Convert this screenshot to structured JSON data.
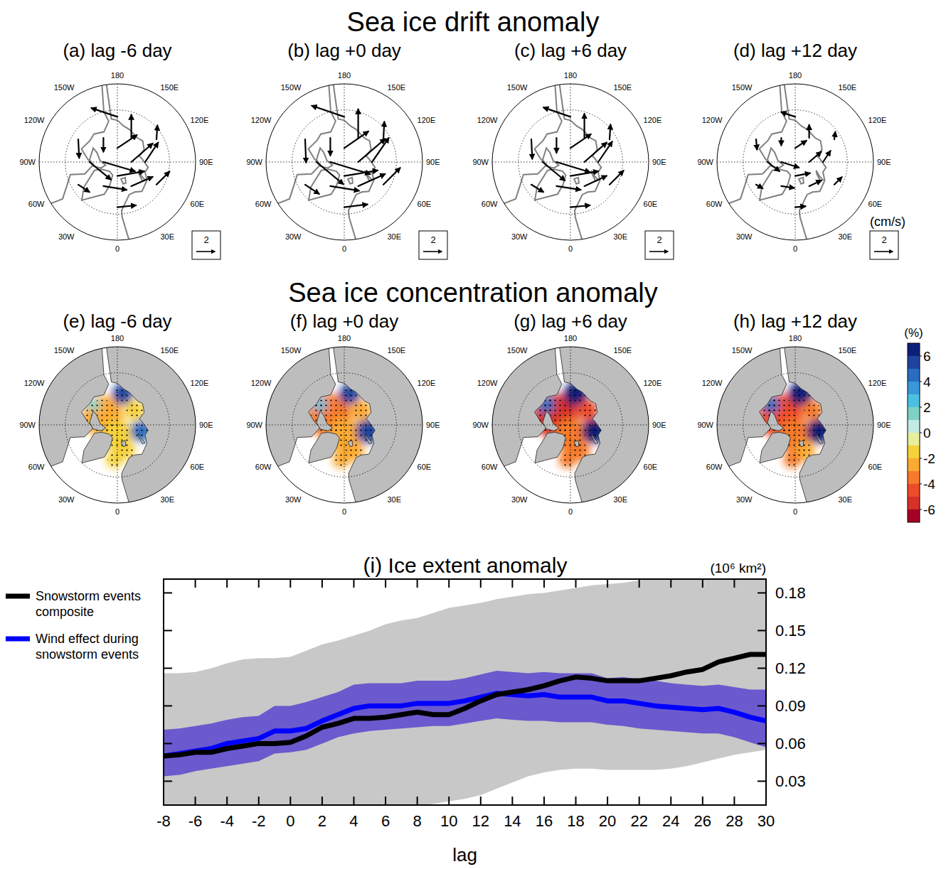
{
  "chart_data": [
    {
      "type": "vector_map",
      "title": "Sea ice drift anomaly",
      "unit": "(cm/s)",
      "reference_vector": 2,
      "lon_ticks": [
        180,
        {
          "value": 150,
          "label": "150E"
        },
        {
          "value": 120,
          "label": "120E"
        },
        {
          "value": 90,
          "label": "90E"
        },
        {
          "value": 60,
          "label": "60E"
        },
        {
          "value": 30,
          "label": "30E"
        },
        0,
        {
          "value": -30,
          "label": "30W"
        },
        {
          "value": -60,
          "label": "60W"
        },
        {
          "value": -90,
          "label": "90W"
        },
        {
          "value": -120,
          "label": "120W"
        },
        {
          "value": -150,
          "label": "150W"
        }
      ],
      "lat": [
        82,
        82,
        82,
        82,
        74,
        74,
        74,
        74,
        74,
        74,
        64,
        64,
        64,
        64,
        64,
        64
      ],
      "lon": [
        0,
        90,
        180,
        -90,
        -150,
        -90,
        -30,
        30,
        90,
        150,
        -120,
        -60,
        0,
        60,
        120,
        180
      ],
      "panels": [
        {
          "title": "(a) lag -6 day",
          "u": [
            2.9,
            2.3,
            2.1,
            3.4,
            0,
            2.3,
            2.5,
            2.3,
            1.4,
            0,
            0.1,
            1.2,
            2,
            1.4,
            0.1,
            -2.8
          ],
          "v": [
            0.5,
            2.0,
            1.4,
            -1.0,
            -1.5,
            -1.9,
            -0.4,
            1.0,
            2.1,
            2.5,
            -2,
            -0.8,
            0.2,
            1.4,
            1.5,
            0.95
          ]
        },
        {
          "title": "(b) lag +0 day",
          "u": [
            3.6,
            2.9,
            2.6,
            4.3,
            0,
            2.9,
            3.1,
            2.9,
            1.8,
            0,
            0.1,
            1.5,
            2.5,
            1.8,
            0.1,
            -3.5
          ],
          "v": [
            0.6,
            2.5,
            1.8,
            -1.3,
            -1.9,
            -2.4,
            -0.5,
            1.3,
            2.6,
            3.1,
            -2.5,
            -1,
            0.3,
            1.8,
            1.9,
            1.2
          ]
        },
        {
          "title": "(c) lag +6 day",
          "u": [
            3.0,
            2.4,
            2.2,
            3.6,
            0,
            2.4,
            2.6,
            2.4,
            1.5,
            0,
            0.1,
            1.3,
            2.1,
            1.5,
            0.1,
            -2.9
          ],
          "v": [
            0.5,
            2.1,
            1.5,
            -1.1,
            -1.6,
            -2.0,
            -0.4,
            1.1,
            2.2,
            2.6,
            -2.1,
            -0.8,
            0.2,
            1.5,
            1.6,
            1.0
          ]
        },
        {
          "title": "(d) lag +12 day",
          "u": [
            1.6,
            1.3,
            1.2,
            1.9,
            0,
            1.3,
            1.4,
            1.3,
            0.8,
            0,
            0.1,
            0.7,
            1.1,
            0.8,
            0.1,
            -1.5
          ],
          "v": [
            0.3,
            1.1,
            0.8,
            -0.6,
            -0.8,
            -1.0,
            -0.2,
            0.6,
            1.2,
            1.4,
            -1.1,
            -0.4,
            0.1,
            0.8,
            0.8,
            0.5
          ]
        }
      ]
    },
    {
      "type": "contour_map",
      "title": "Sea ice concentration anomaly",
      "lon_ticks": [
        180,
        {
          "value": 150,
          "label": "150E"
        },
        {
          "value": 120,
          "label": "120E"
        },
        {
          "value": 90,
          "label": "90E"
        },
        {
          "value": 60,
          "label": "60E"
        },
        {
          "value": 30,
          "label": "30E"
        },
        0,
        {
          "value": -30,
          "label": "30W"
        },
        {
          "value": -60,
          "label": "60W"
        },
        {
          "value": -90,
          "label": "90W"
        },
        {
          "value": -120,
          "label": "120W"
        },
        {
          "value": -150,
          "label": "150W"
        }
      ],
      "colorbar": {
        "label": "(%)",
        "range": [
          -7,
          7
        ],
        "ticks": [
          6,
          4,
          2,
          0,
          -2,
          -4,
          -6
        ],
        "colors": [
          "#a50026",
          "#d73027",
          "#ee4b2b",
          "#f67a2c",
          "#fbaa32",
          "#f5d23a",
          "#e8ee9a",
          "#c4ebe3",
          "#7fd1c3",
          "#4cc0e0",
          "#3a98d8",
          "#2a6cc0",
          "#1f44a0",
          "#0c1f78"
        ]
      },
      "panels": [
        {
          "title": "(e) lag -6 day",
          "lat": [
            80,
            84,
            72,
            76,
            77,
            74,
            72,
            70
          ],
          "lon": [
            -120,
            0,
            170,
            75,
            130,
            20,
            -130,
            -5
          ],
          "radius": [
            12,
            9,
            6,
            6,
            6,
            5,
            4,
            5
          ],
          "value": [
            -3,
            -2,
            5,
            4,
            -2,
            -2,
            1,
            -2
          ]
        },
        {
          "title": "(f) lag +0 day",
          "lat": [
            80,
            84,
            72,
            76,
            77,
            74,
            72,
            70
          ],
          "lon": [
            -120,
            0,
            170,
            75,
            130,
            20,
            -130,
            -5
          ],
          "radius": [
            13,
            10,
            6,
            7,
            6,
            6,
            4,
            5
          ],
          "value": [
            -4,
            -3,
            5,
            5,
            -3,
            -3,
            2,
            -3
          ]
        },
        {
          "title": "(g) lag +6 day",
          "lat": [
            80,
            84,
            72,
            76,
            77,
            74,
            72,
            70
          ],
          "lon": [
            -120,
            0,
            170,
            75,
            130,
            20,
            -130,
            -5
          ],
          "radius": [
            13,
            10,
            7,
            7,
            6,
            6,
            5,
            5
          ],
          "value": [
            -6,
            -4,
            6,
            6,
            -5,
            -4,
            4,
            -4
          ]
        },
        {
          "title": "(h) lag +12 day",
          "lat": [
            80,
            84,
            72,
            76,
            77,
            74,
            72,
            70
          ],
          "lon": [
            -120,
            0,
            170,
            75,
            130,
            20,
            -130,
            -5
          ],
          "radius": [
            13,
            10,
            7,
            7,
            6,
            6,
            5,
            5
          ],
          "value": [
            -5,
            -4,
            6,
            6,
            -4,
            -3,
            4,
            -4
          ]
        }
      ]
    },
    {
      "type": "line",
      "title": "(i) Ice extent anomaly",
      "y_label": "(10⁶ km²)",
      "x_label": "lag",
      "legend": "left",
      "x": [
        -8,
        -7,
        -6,
        -5,
        -4,
        -3,
        -2,
        -1,
        0,
        1,
        2,
        3,
        4,
        5,
        6,
        7,
        8,
        9,
        10,
        11,
        12,
        13,
        14,
        15,
        16,
        17,
        18,
        19,
        20,
        21,
        22,
        23,
        24,
        25,
        26,
        27,
        28,
        29,
        30
      ],
      "xlim": [
        -8,
        30
      ],
      "xticks": [
        -8,
        -6,
        -4,
        -2,
        0,
        2,
        4,
        6,
        8,
        10,
        12,
        14,
        16,
        18,
        20,
        22,
        24,
        26,
        28,
        30
      ],
      "ylim": [
        0.011,
        0.191
      ],
      "yticks": [
        0.03,
        0.06,
        0.09,
        0.12,
        0.15,
        0.18
      ],
      "series": [
        {
          "name": "Snowstorm events composite",
          "color": "#000000",
          "values": [
            0.05,
            0.051,
            0.053,
            0.053,
            0.056,
            0.058,
            0.06,
            0.06,
            0.061,
            0.066,
            0.073,
            0.076,
            0.08,
            0.08,
            0.081,
            0.083,
            0.085,
            0.083,
            0.083,
            0.088,
            0.094,
            0.099,
            0.101,
            0.103,
            0.106,
            0.11,
            0.113,
            0.112,
            0.11,
            0.11,
            0.11,
            0.112,
            0.114,
            0.117,
            0.119,
            0.125,
            0.128,
            0.131,
            0.131
          ]
        },
        {
          "name": "Wind effect during snowstorm events",
          "color": "#0000ff",
          "values": [
            0.05,
            0.052,
            0.054,
            0.056,
            0.06,
            0.062,
            0.064,
            0.07,
            0.07,
            0.072,
            0.078,
            0.083,
            0.088,
            0.09,
            0.09,
            0.09,
            0.092,
            0.092,
            0.092,
            0.094,
            0.097,
            0.1,
            0.099,
            0.098,
            0.099,
            0.097,
            0.097,
            0.097,
            0.094,
            0.094,
            0.092,
            0.09,
            0.089,
            0.088,
            0.087,
            0.088,
            0.085,
            0.081,
            0.078
          ]
        }
      ],
      "bands": [
        {
          "color": "#c8c8c8",
          "lower": [
            -0.015,
            -0.014,
            -0.013,
            -0.012,
            -0.01,
            -0.009,
            -0.008,
            -0.007,
            -0.006,
            -0.004,
            -0.002,
            0,
            0.002,
            0.004,
            0.006,
            0.008,
            0.01,
            0.012,
            0.014,
            0.016,
            0.019,
            0.024,
            0.029,
            0.034,
            0.037,
            0.039,
            0.04,
            0.04,
            0.039,
            0.039,
            0.039,
            0.039,
            0.04,
            0.042,
            0.045,
            0.048,
            0.051,
            0.053,
            0.055
          ],
          "upper": [
            0.116,
            0.116,
            0.117,
            0.12,
            0.124,
            0.127,
            0.128,
            0.128,
            0.129,
            0.134,
            0.139,
            0.142,
            0.146,
            0.15,
            0.155,
            0.158,
            0.16,
            0.164,
            0.168,
            0.17,
            0.172,
            0.175,
            0.177,
            0.179,
            0.18,
            0.182,
            0.184,
            0.186,
            0.187,
            0.188,
            0.19,
            0.192,
            0.194,
            0.196,
            0.198,
            0.199,
            0.2,
            0.201,
            0.202
          ]
        },
        {
          "color": "#6a5acd",
          "lower": [
            0.034,
            0.035,
            0.038,
            0.04,
            0.042,
            0.044,
            0.046,
            0.052,
            0.053,
            0.055,
            0.06,
            0.065,
            0.068,
            0.07,
            0.071,
            0.072,
            0.073,
            0.074,
            0.074,
            0.076,
            0.078,
            0.08,
            0.079,
            0.078,
            0.078,
            0.077,
            0.077,
            0.077,
            0.075,
            0.074,
            0.072,
            0.071,
            0.07,
            0.069,
            0.068,
            0.068,
            0.065,
            0.061,
            0.057
          ],
          "upper": [
            0.071,
            0.072,
            0.074,
            0.076,
            0.079,
            0.081,
            0.082,
            0.09,
            0.09,
            0.093,
            0.097,
            0.101,
            0.107,
            0.108,
            0.108,
            0.108,
            0.11,
            0.11,
            0.11,
            0.112,
            0.115,
            0.118,
            0.117,
            0.116,
            0.117,
            0.116,
            0.116,
            0.116,
            0.112,
            0.113,
            0.111,
            0.11,
            0.108,
            0.107,
            0.106,
            0.107,
            0.105,
            0.103,
            0.103
          ]
        }
      ]
    }
  ]
}
